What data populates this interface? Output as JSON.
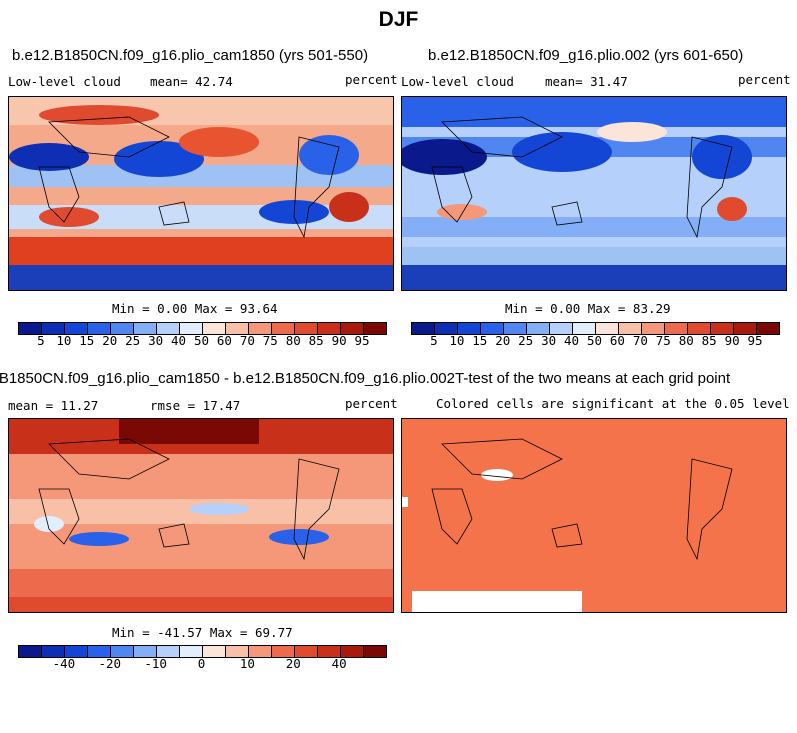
{
  "page": {
    "season": "DJF"
  },
  "panels": {
    "p1": {
      "title": "b.e12.B1850CN.f09_g16.plio_cam1850 (yrs 501-550)",
      "variable": "Low-level cloud",
      "mean": "mean=  42.74",
      "units": "percent",
      "minmax": "Min =   0.00 Max =  93.64"
    },
    "p2": {
      "title": "b.e12.B1850CN.f09_g16.plio.002 (yrs 601-650)",
      "variable": "Low-level cloud",
      "mean": "mean=  31.47",
      "units": "percent",
      "minmax": "Min =   0.00 Max =  83.29"
    },
    "p3": {
      "title": "B1850CN.f09_g16.plio_cam1850 - b.e12.B1850CN.f09_g16.plio.002",
      "mean": "mean =  11.27",
      "rmse": "rmse =  17.47",
      "units": "percent",
      "minmax": "Min = -41.57 Max =  69.77"
    },
    "p4": {
      "title": "T-test of the two means at each grid point",
      "subtitle": "Colored cells are significant at the 0.05 level"
    }
  },
  "colorbars": {
    "abs_labels": [
      "5",
      "10",
      "15",
      "20",
      "25",
      "30",
      "40",
      "50",
      "60",
      "70",
      "75",
      "80",
      "85",
      "90",
      "95"
    ],
    "diff_labels": [
      "-40",
      "-20",
      "-10",
      "0",
      "10",
      "20",
      "40"
    ],
    "colors": [
      "#0a1a8c",
      "#0e2fb4",
      "#1446d6",
      "#2962e8",
      "#4f86f0",
      "#84aef5",
      "#b5d0fa",
      "#e3eefc",
      "#fbe4d8",
      "#f9c0a8",
      "#f5987a",
      "#ee6a4c",
      "#e04a2f",
      "#c9301a",
      "#a71a0c",
      "#7a0804"
    ],
    "diff_colors": [
      "#0a1a8c",
      "#0e2fb4",
      "#1446d6",
      "#2962e8",
      "#4f86f0",
      "#84aef5",
      "#b5d0fa",
      "#e3eefc",
      "#fbe4d8",
      "#f9c0a8",
      "#f5987a",
      "#ee6a4c",
      "#e04a2f",
      "#c9301a",
      "#a71a0c",
      "#7a0804"
    ],
    "ttest_color": "#f4734a"
  }
}
